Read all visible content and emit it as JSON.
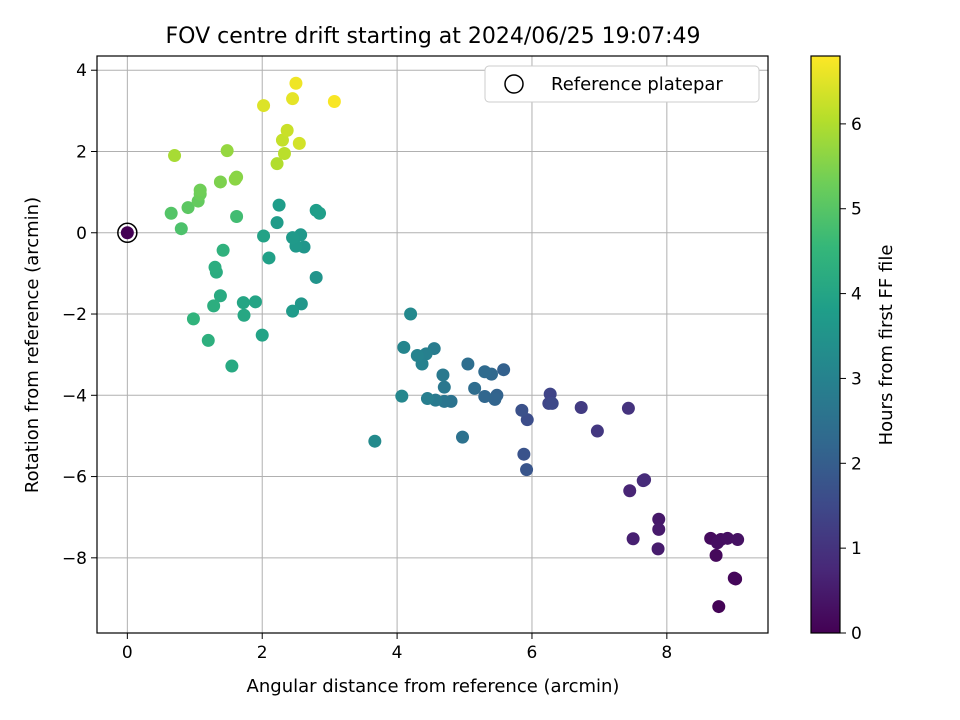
{
  "chart_data": {
    "type": "scatter",
    "title": "FOV centre drift starting at 2024/06/25 19:07:49",
    "xlabel": "Angular distance from reference (arcmin)",
    "ylabel": "Rotation from reference (arcmin)",
    "xlim": [
      -0.45,
      9.5
    ],
    "ylim": [
      -9.85,
      4.35
    ],
    "xticks": [
      0,
      2,
      4,
      6,
      8
    ],
    "yticks": [
      -8,
      -6,
      -4,
      -2,
      0,
      2,
      4
    ],
    "grid": true,
    "legend": {
      "position": "top-right",
      "entries": [
        "Reference platepar"
      ]
    },
    "reference": {
      "x": 0,
      "y": 0
    },
    "colorbar": {
      "label": "Hours from first FF file",
      "colormap": "viridis",
      "range": [
        0,
        6.8
      ],
      "ticks": [
        0,
        1,
        2,
        3,
        4,
        5,
        6
      ]
    },
    "points": [
      {
        "x": 8.77,
        "y": -9.2,
        "h": 0.05
      },
      {
        "x": 9.02,
        "y": -8.52,
        "h": 0.1
      },
      {
        "x": 9.0,
        "y": -8.5,
        "h": 0.12
      },
      {
        "x": 8.73,
        "y": -7.94,
        "h": 0.15
      },
      {
        "x": 8.65,
        "y": -7.52,
        "h": 0.2
      },
      {
        "x": 8.8,
        "y": -7.55,
        "h": 0.25
      },
      {
        "x": 8.75,
        "y": -7.63,
        "h": 0.28
      },
      {
        "x": 8.9,
        "y": -7.52,
        "h": 0.3
      },
      {
        "x": 9.05,
        "y": -7.55,
        "h": 0.32
      },
      {
        "x": 7.88,
        "y": -7.05,
        "h": 0.45
      },
      {
        "x": 7.88,
        "y": -7.3,
        "h": 0.48
      },
      {
        "x": 7.87,
        "y": -7.78,
        "h": 0.52
      },
      {
        "x": 7.5,
        "y": -7.53,
        "h": 0.6
      },
      {
        "x": 7.45,
        "y": -6.35,
        "h": 0.7
      },
      {
        "x": 7.65,
        "y": -6.1,
        "h": 0.8
      },
      {
        "x": 7.67,
        "y": -6.08,
        "h": 0.85
      },
      {
        "x": 7.43,
        "y": -4.32,
        "h": 1.0
      },
      {
        "x": 6.97,
        "y": -4.88,
        "h": 1.1
      },
      {
        "x": 6.73,
        "y": -4.3,
        "h": 1.2
      },
      {
        "x": 6.27,
        "y": -3.97,
        "h": 1.4
      },
      {
        "x": 6.25,
        "y": -4.2,
        "h": 1.45
      },
      {
        "x": 6.3,
        "y": -4.2,
        "h": 1.5
      },
      {
        "x": 5.93,
        "y": -4.6,
        "h": 1.6
      },
      {
        "x": 5.85,
        "y": -4.37,
        "h": 1.7
      },
      {
        "x": 5.88,
        "y": -5.45,
        "h": 1.75
      },
      {
        "x": 5.92,
        "y": -5.83,
        "h": 1.8
      },
      {
        "x": 5.58,
        "y": -3.37,
        "h": 2.1
      },
      {
        "x": 5.48,
        "y": -4.0,
        "h": 2.15
      },
      {
        "x": 5.45,
        "y": -4.1,
        "h": 2.2
      },
      {
        "x": 5.3,
        "y": -4.03,
        "h": 2.25
      },
      {
        "x": 5.4,
        "y": -3.48,
        "h": 2.3
      },
      {
        "x": 5.3,
        "y": -3.42,
        "h": 2.35
      },
      {
        "x": 5.15,
        "y": -3.83,
        "h": 2.4
      },
      {
        "x": 5.05,
        "y": -3.23,
        "h": 2.45
      },
      {
        "x": 4.97,
        "y": -5.03,
        "h": 2.55
      },
      {
        "x": 4.8,
        "y": -4.15,
        "h": 2.6
      },
      {
        "x": 4.7,
        "y": -4.15,
        "h": 2.65
      },
      {
        "x": 4.7,
        "y": -3.8,
        "h": 2.7
      },
      {
        "x": 4.68,
        "y": -3.5,
        "h": 2.75
      },
      {
        "x": 4.57,
        "y": -4.12,
        "h": 2.8
      },
      {
        "x": 4.55,
        "y": -2.85,
        "h": 2.85
      },
      {
        "x": 4.45,
        "y": -4.08,
        "h": 2.9
      },
      {
        "x": 4.43,
        "y": -2.98,
        "h": 2.95
      },
      {
        "x": 4.37,
        "y": -3.23,
        "h": 3.0
      },
      {
        "x": 4.3,
        "y": -3.02,
        "h": 3.05
      },
      {
        "x": 4.1,
        "y": -2.82,
        "h": 3.1
      },
      {
        "x": 4.07,
        "y": -4.02,
        "h": 3.15
      },
      {
        "x": 4.2,
        "y": -2.0,
        "h": 3.2
      },
      {
        "x": 3.67,
        "y": -5.13,
        "h": 3.25
      },
      {
        "x": 2.8,
        "y": -1.1,
        "h": 3.5
      },
      {
        "x": 2.62,
        "y": -0.35,
        "h": 3.55
      },
      {
        "x": 2.58,
        "y": -1.75,
        "h": 3.6
      },
      {
        "x": 2.57,
        "y": -0.05,
        "h": 3.62
      },
      {
        "x": 2.5,
        "y": -0.33,
        "h": 3.65
      },
      {
        "x": 2.45,
        "y": -0.12,
        "h": 3.68
      },
      {
        "x": 2.45,
        "y": -1.93,
        "h": 3.7
      },
      {
        "x": 2.22,
        "y": 0.25,
        "h": 3.72
      },
      {
        "x": 2.25,
        "y": 0.68,
        "h": 3.75
      },
      {
        "x": 2.8,
        "y": 0.55,
        "h": 3.78
      },
      {
        "x": 2.85,
        "y": 0.48,
        "h": 3.8
      },
      {
        "x": 2.1,
        "y": -0.62,
        "h": 3.85
      },
      {
        "x": 2.02,
        "y": -0.08,
        "h": 3.9
      },
      {
        "x": 2.0,
        "y": -2.52,
        "h": 3.92
      },
      {
        "x": 1.9,
        "y": -1.7,
        "h": 3.95
      },
      {
        "x": 1.72,
        "y": -1.72,
        "h": 4.0
      },
      {
        "x": 1.73,
        "y": -2.03,
        "h": 4.05
      },
      {
        "x": 1.55,
        "y": -3.28,
        "h": 4.1
      },
      {
        "x": 1.38,
        "y": -1.55,
        "h": 4.15
      },
      {
        "x": 1.32,
        "y": -0.97,
        "h": 4.2
      },
      {
        "x": 1.3,
        "y": -0.85,
        "h": 4.22
      },
      {
        "x": 1.28,
        "y": -1.8,
        "h": 4.25
      },
      {
        "x": 1.2,
        "y": -2.65,
        "h": 4.3
      },
      {
        "x": 1.42,
        "y": -0.43,
        "h": 4.35
      },
      {
        "x": 0.98,
        "y": -2.12,
        "h": 4.4
      },
      {
        "x": 1.62,
        "y": 0.4,
        "h": 4.7
      },
      {
        "x": 0.8,
        "y": 0.1,
        "h": 4.85
      },
      {
        "x": 0.65,
        "y": 0.48,
        "h": 4.95
      },
      {
        "x": 0.9,
        "y": 0.62,
        "h": 5.05
      },
      {
        "x": 1.05,
        "y": 0.78,
        "h": 5.15
      },
      {
        "x": 1.08,
        "y": 0.95,
        "h": 5.25
      },
      {
        "x": 1.08,
        "y": 1.05,
        "h": 5.3
      },
      {
        "x": 1.38,
        "y": 1.25,
        "h": 5.45
      },
      {
        "x": 1.62,
        "y": 1.37,
        "h": 5.55
      },
      {
        "x": 1.6,
        "y": 1.32,
        "h": 5.6
      },
      {
        "x": 1.48,
        "y": 2.02,
        "h": 5.7
      },
      {
        "x": 0.7,
        "y": 1.9,
        "h": 5.9
      },
      {
        "x": 2.22,
        "y": 1.7,
        "h": 6.0
      },
      {
        "x": 2.33,
        "y": 1.95,
        "h": 6.1
      },
      {
        "x": 2.3,
        "y": 2.28,
        "h": 6.2
      },
      {
        "x": 2.37,
        "y": 2.52,
        "h": 6.25
      },
      {
        "x": 2.55,
        "y": 2.2,
        "h": 6.35
      },
      {
        "x": 2.02,
        "y": 3.13,
        "h": 6.45
      },
      {
        "x": 2.45,
        "y": 3.3,
        "h": 6.55
      },
      {
        "x": 2.5,
        "y": 3.68,
        "h": 6.65
      },
      {
        "x": 3.07,
        "y": 3.23,
        "h": 6.75
      }
    ]
  }
}
